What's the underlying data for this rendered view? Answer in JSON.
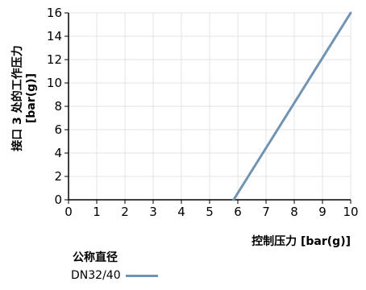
{
  "chart_data": {
    "type": "line",
    "title": "",
    "xlabel": "控制压力 [bar(g)]",
    "ylabel_lines": [
      "接口 3 处的工作压力",
      "[bar(g)]"
    ],
    "xlim": [
      0,
      10
    ],
    "ylim": [
      0,
      16
    ],
    "xticks": [
      "0",
      "1",
      "2",
      "3",
      "4",
      "5",
      "6",
      "7",
      "8",
      "9",
      "10"
    ],
    "yticks": [
      "0",
      "2",
      "4",
      "6",
      "8",
      "10",
      "12",
      "14",
      "16"
    ],
    "grid": true,
    "legend_title": "公称直径",
    "legend_position": "bottom-left",
    "series": [
      {
        "name": "DN32/40",
        "color": "#7393b3",
        "x": [
          5.85,
          10
        ],
        "y": [
          0,
          16
        ]
      }
    ]
  },
  "colors": {
    "grid": "#e3e3e3",
    "axis": "#000000"
  }
}
